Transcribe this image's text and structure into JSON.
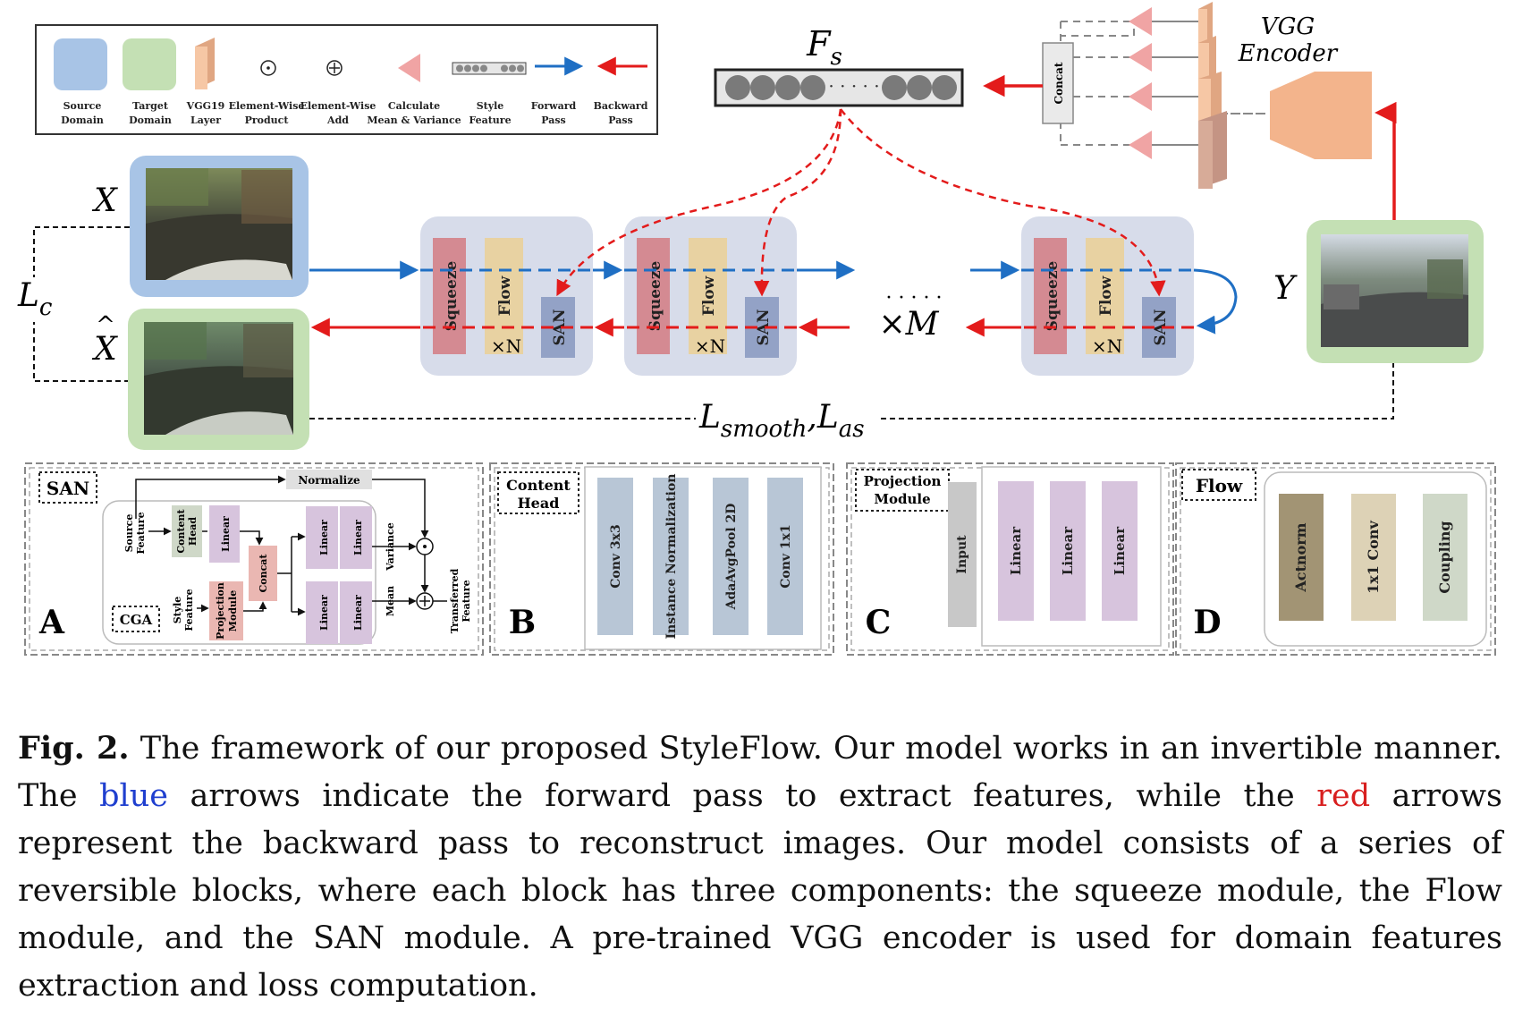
{
  "legend": {
    "source_domain": [
      "Source",
      "Domain"
    ],
    "target_domain": [
      "Target",
      "Domain"
    ],
    "vgg19_layer": [
      "VGG19",
      "Layer"
    ],
    "element_wise_product": [
      "Element-Wise",
      "Product"
    ],
    "element_wise_add": [
      "Element-Wise",
      "Add"
    ],
    "calc_mean_var": [
      "Calculate",
      "Mean & Variance"
    ],
    "style_feature": [
      "Style",
      "Feature"
    ],
    "forward_pass": [
      "Forward",
      "Pass"
    ],
    "backward_pass": [
      "Backward",
      "Pass"
    ]
  },
  "main": {
    "fs": "F",
    "fs_sub": "s",
    "vgg_encoder": [
      "VGG",
      "Encoder"
    ],
    "concat": "Concat",
    "x": "X",
    "x_hat": "X",
    "y": "Y",
    "lc": "L",
    "lc_sub": "c",
    "loss": "L",
    "loss_sub1": "smooth",
    "loss_mid": ",L",
    "loss_sub2": "as",
    "times_m": "×M",
    "dots": "· · · · ·",
    "squeeze": "Squeeze",
    "flow": "Flow",
    "san": "SAN",
    "times_n": "×N"
  },
  "panel_a": {
    "tag": "SAN",
    "letter": "A",
    "normalize": "Normalize",
    "source_feature": [
      "Source",
      "Feature"
    ],
    "content_head": [
      "Content",
      "Head"
    ],
    "linear": "Linear",
    "concat": "Concat",
    "cga": "CGA",
    "style_feature": [
      "Style",
      "Feature"
    ],
    "projection_module": [
      "Projection",
      "Module"
    ],
    "variance": "Variance",
    "mean": "Mean",
    "transferred_feature": [
      "Transferred",
      "Feature"
    ]
  },
  "panel_b": {
    "tag": [
      "Content",
      "Head"
    ],
    "letter": "B",
    "blocks": [
      "Conv 3x3",
      "Instance Normalization",
      "AdaAvgPool 2D",
      "Conv 1x1"
    ]
  },
  "panel_c": {
    "tag": [
      "Projection",
      "Module"
    ],
    "letter": "C",
    "input": "Input",
    "linears": [
      "Linear",
      "Linear",
      "Linear"
    ]
  },
  "panel_d": {
    "tag": "Flow",
    "letter": "D",
    "blocks": [
      "Actnorm",
      "1x1 Conv",
      "Coupling"
    ]
  },
  "caption": {
    "fig": "Fig. 2.",
    "t1": " The framework of our proposed StyleFlow. Our model works in an invertible manner. The ",
    "blue": "blue",
    "t2": " arrows indicate the forward pass to extract features, while the ",
    "red": "red",
    "t3": " arrows represent the backward pass to reconstruct images. Our model consists of a series of reversible blocks, where each block has three components: the squeeze module, the Flow module, and the SAN module. A pre-trained VGG encoder is used for domain features extraction and loss computation."
  },
  "colors": {
    "forward": "#1f6fc4",
    "backward": "#e31b1b",
    "source": "#a8c4e6",
    "target": "#c4e0b4",
    "squeeze": "#d48a92",
    "flow": "#e8d2a2",
    "san": "#93a2c6",
    "block_bg": "#d7dcea",
    "vgg": "#f3b48c",
    "linear": "#d7c4dd",
    "conv": "#b8c6d6",
    "actnorm": "#a29474",
    "conv1x1": "#ddd2b6",
    "coupling": "#cfd8c8"
  }
}
